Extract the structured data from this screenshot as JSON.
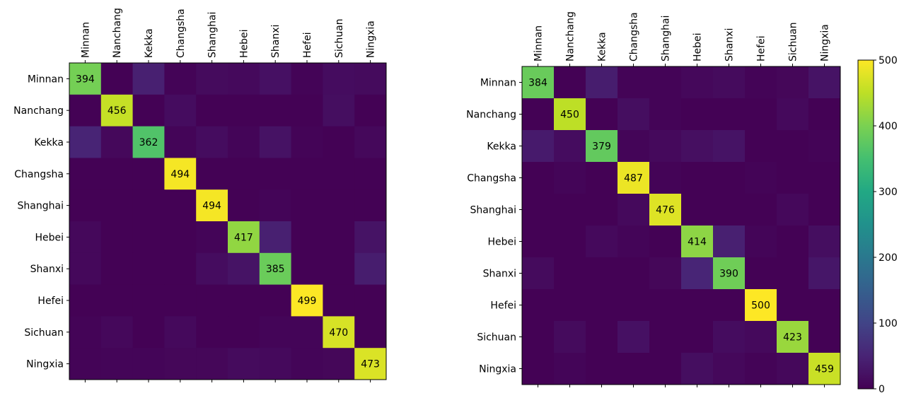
{
  "chart_data": [
    {
      "type": "heatmap",
      "labels": [
        "Minnan",
        "Nanchang",
        "Kekka",
        "Changsha",
        "Shanghai",
        "Hebei",
        "Shanxi",
        "Hefei",
        "Sichuan",
        "Ningxia"
      ],
      "matrix": [
        [
          394,
          2,
          44,
          4,
          14,
          12,
          22,
          4,
          16,
          14
        ],
        [
          2,
          456,
          2,
          16,
          2,
          2,
          2,
          2,
          18,
          2
        ],
        [
          50,
          10,
          362,
          6,
          16,
          6,
          24,
          4,
          2,
          10
        ],
        [
          2,
          2,
          2,
          494,
          2,
          2,
          2,
          2,
          2,
          2
        ],
        [
          2,
          2,
          2,
          2,
          494,
          2,
          6,
          2,
          2,
          2
        ],
        [
          10,
          2,
          2,
          2,
          6,
          417,
          44,
          2,
          2,
          26
        ],
        [
          10,
          2,
          2,
          2,
          16,
          26,
          385,
          2,
          2,
          40
        ],
        [
          2,
          2,
          2,
          2,
          2,
          2,
          2,
          499,
          2,
          2
        ],
        [
          4,
          10,
          2,
          12,
          2,
          2,
          6,
          6,
          470,
          2
        ],
        [
          4,
          6,
          6,
          8,
          8,
          14,
          12,
          6,
          8,
          473
        ]
      ],
      "vmin": 0,
      "vmax": 500
    },
    {
      "type": "heatmap",
      "labels": [
        "Minnan",
        "Nanchang",
        "Kekka",
        "Changsha",
        "Shanghai",
        "Hebei",
        "Shanxi",
        "Hefei",
        "Sichuan",
        "Ningxia"
      ],
      "matrix": [
        [
          384,
          2,
          40,
          4,
          4,
          10,
          14,
          4,
          8,
          26
        ],
        [
          2,
          450,
          2,
          18,
          4,
          2,
          2,
          2,
          12,
          2
        ],
        [
          36,
          16,
          379,
          6,
          12,
          20,
          26,
          2,
          2,
          4
        ],
        [
          2,
          6,
          2,
          487,
          4,
          2,
          2,
          4,
          2,
          2
        ],
        [
          2,
          2,
          2,
          12,
          476,
          2,
          2,
          2,
          10,
          2
        ],
        [
          2,
          2,
          12,
          6,
          2,
          414,
          44,
          6,
          2,
          18
        ],
        [
          14,
          2,
          2,
          2,
          8,
          52,
          390,
          2,
          2,
          30
        ],
        [
          2,
          2,
          2,
          2,
          2,
          2,
          2,
          500,
          2,
          2
        ],
        [
          2,
          14,
          2,
          22,
          2,
          2,
          16,
          12,
          423,
          2
        ],
        [
          2,
          6,
          2,
          2,
          2,
          18,
          10,
          4,
          10,
          459
        ]
      ],
      "vmin": 0,
      "vmax": 500
    }
  ],
  "colorbar": {
    "ticks": [
      "0",
      "100",
      "200",
      "300",
      "400",
      "500"
    ]
  }
}
